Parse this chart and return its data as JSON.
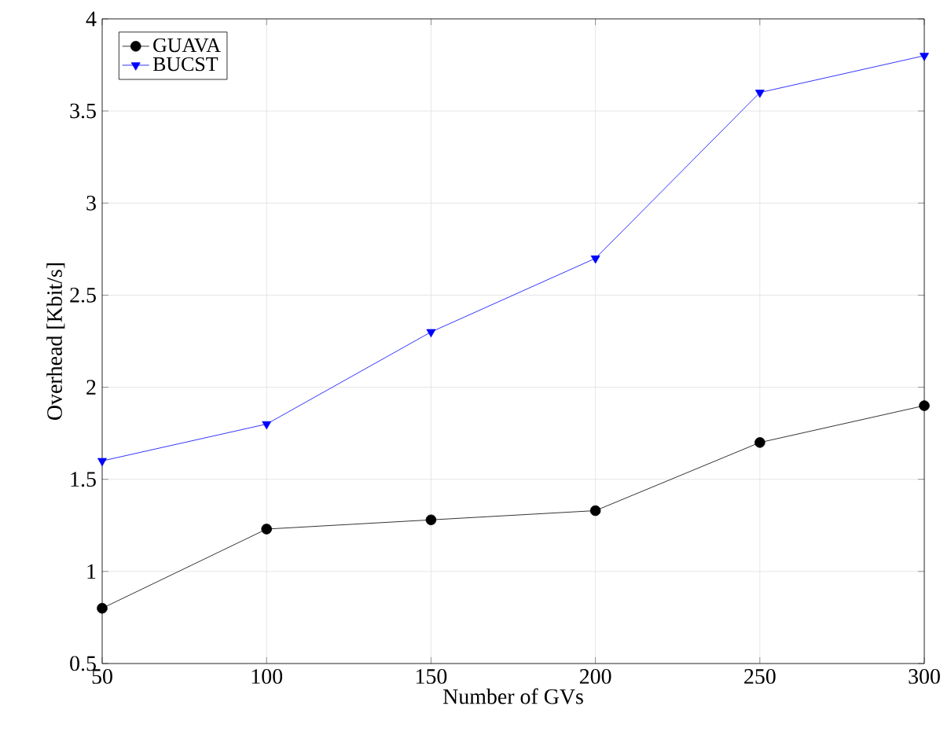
{
  "chart_data": {
    "type": "line",
    "xlabel": "Number of GVs",
    "ylabel": "Overhead [Kbit/s]",
    "x": [
      50,
      100,
      150,
      200,
      250,
      300
    ],
    "series": [
      {
        "name": "GUAVA",
        "color": "#000000",
        "marker": "circle",
        "values": [
          0.8,
          1.23,
          1.28,
          1.33,
          1.7,
          1.9
        ]
      },
      {
        "name": "BUCST",
        "color": "#0000ff",
        "marker": "triangle",
        "values": [
          1.6,
          1.8,
          2.3,
          2.7,
          3.6,
          3.8
        ]
      }
    ],
    "xlim": [
      50,
      300
    ],
    "ylim": [
      0.5,
      4
    ],
    "xticks": [
      50,
      100,
      150,
      200,
      250,
      300
    ],
    "yticks": [
      0.5,
      1,
      1.5,
      2,
      2.5,
      3,
      3.5,
      4
    ],
    "grid": true,
    "legend": "top left",
    "line_style": "solid"
  }
}
